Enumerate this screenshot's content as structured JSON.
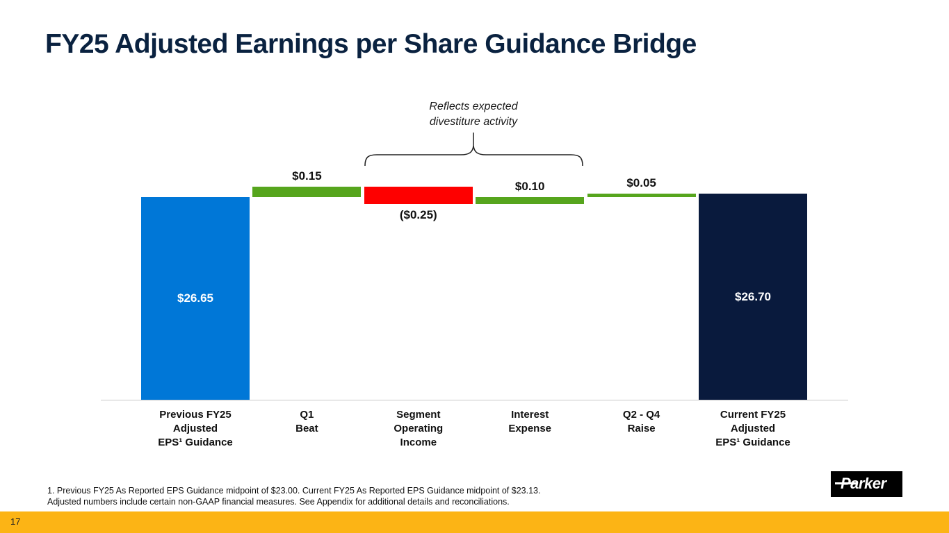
{
  "title": "FY25 Adjusted Earnings per Share Guidance Bridge",
  "page_number": "17",
  "logo_text": "Parker",
  "footnote": {
    "line1": "1. Previous FY25 As Reported EPS Guidance midpoint of $23.00. Current FY25 As Reported EPS Guidance midpoint of $23.13.",
    "line2": "Adjusted numbers include certain non-GAAP financial measures. See Appendix for additional details and reconciliations."
  },
  "chart_data": {
    "type": "waterfall",
    "title": "FY25 Adjusted Earnings per Share Guidance Bridge",
    "annotation": "Reflects expected\ndivestiture activity",
    "unit": "USD per share",
    "legend": "none",
    "colors": {
      "start_bar": "#0077d7",
      "increase": "#56a51d",
      "decrease": "#fe0000",
      "end_bar": "#091a3d"
    },
    "steps": [
      {
        "category": "Previous FY25\nAdjusted\nEPS¹ Guidance",
        "type": "total",
        "value": 26.65,
        "label": "$26.65"
      },
      {
        "category": "Q1\nBeat",
        "type": "delta",
        "value": 0.15,
        "label": "$0.15"
      },
      {
        "category": "Segment\nOperating\nIncome",
        "type": "delta",
        "value": -0.25,
        "label": "($0.25)"
      },
      {
        "category": "Interest\nExpense",
        "type": "delta",
        "value": 0.1,
        "label": "$0.10"
      },
      {
        "category": "Q2 - Q4\nRaise",
        "type": "delta",
        "value": 0.05,
        "label": "$0.05"
      },
      {
        "category": "Current FY25\nAdjusted\nEPS¹ Guidance",
        "type": "total",
        "value": 26.7,
        "label": "$26.70"
      }
    ]
  }
}
